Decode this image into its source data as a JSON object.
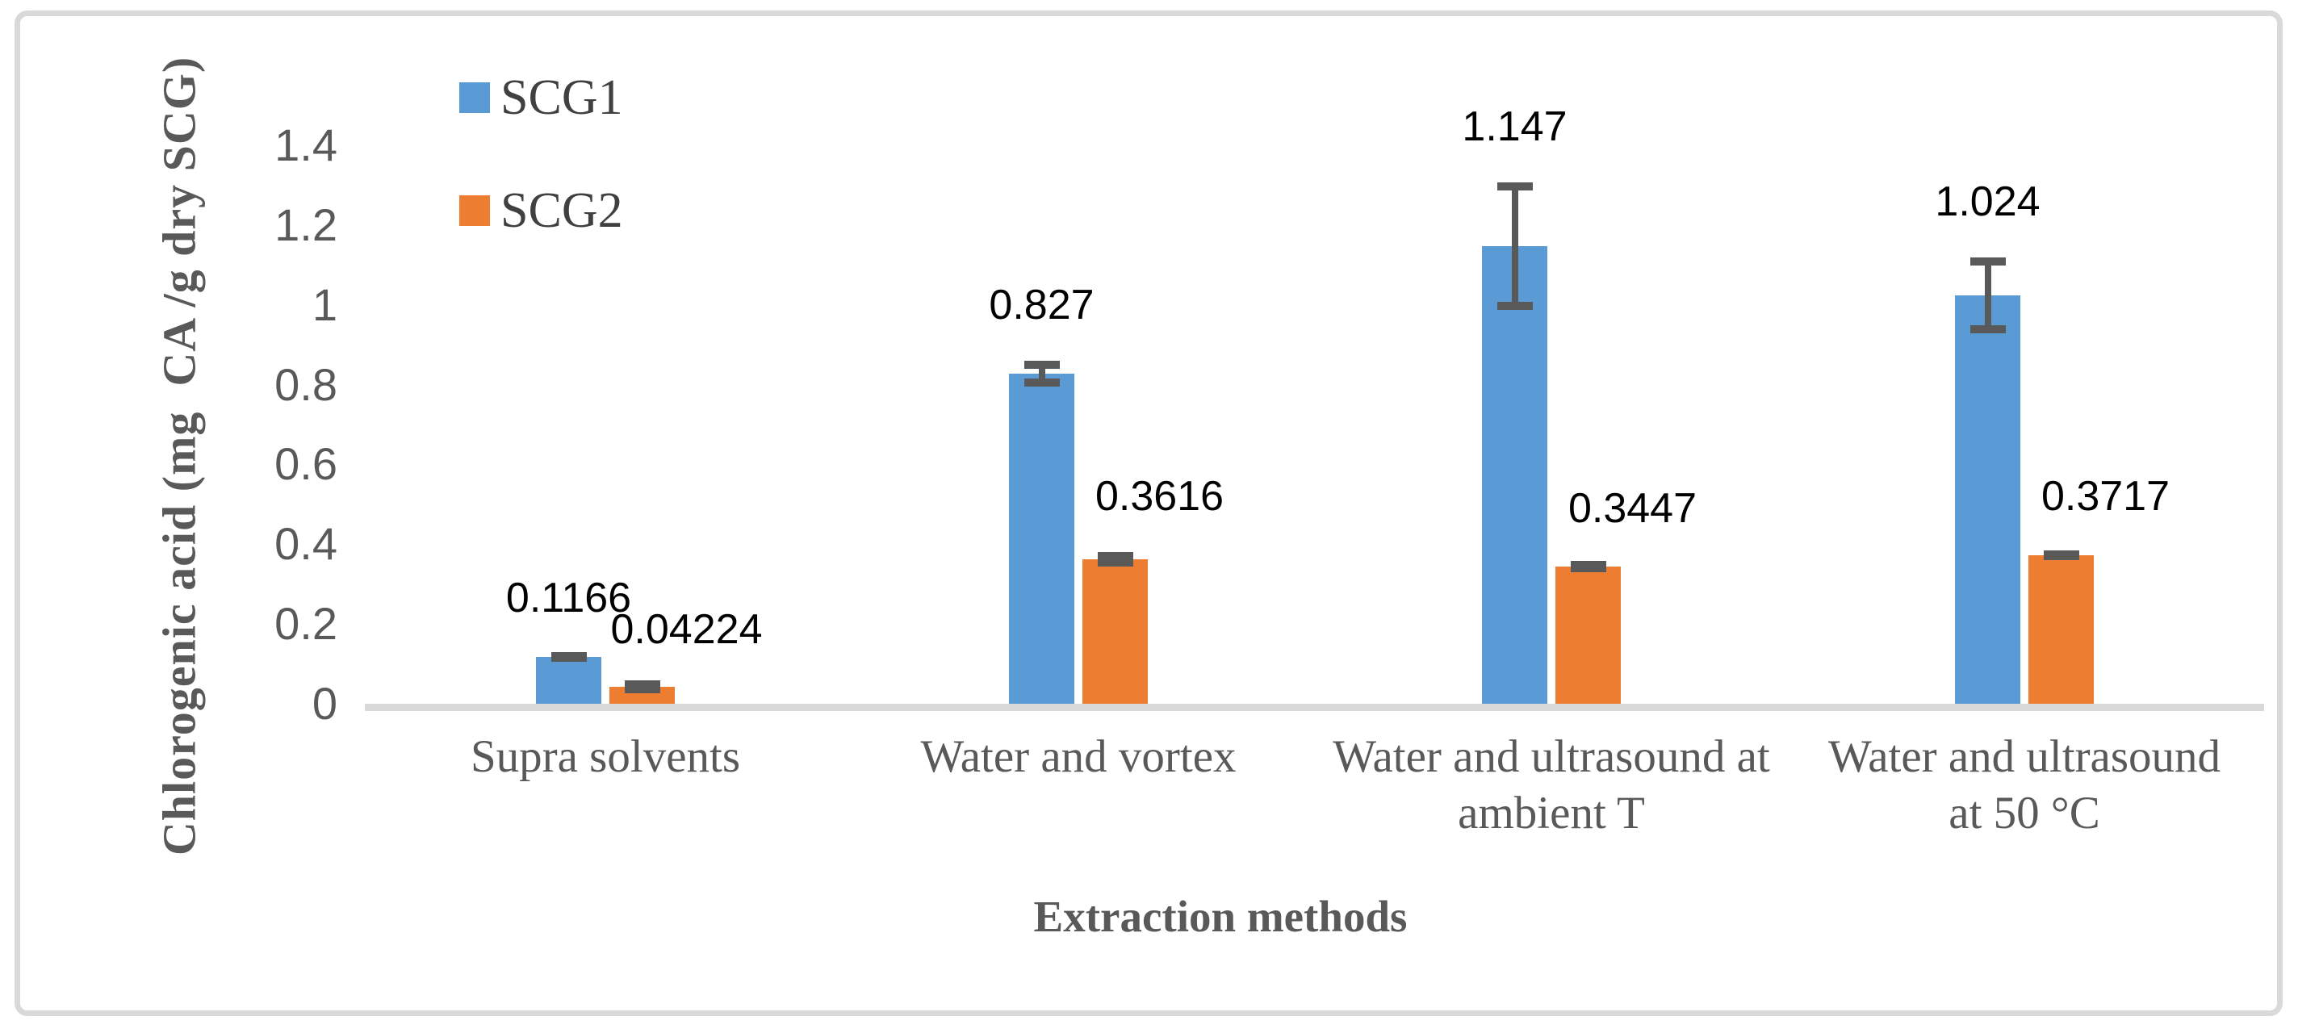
{
  "figure": {
    "background_color": "#ffffff",
    "border_color": "#d9d9d9",
    "axis_line_color": "#d9d9d9",
    "text_color": "#595959",
    "data_label_color": "#000000"
  },
  "legend": {
    "items": [
      {
        "label": "SCG1",
        "color": "#5B9BD5"
      },
      {
        "label": "SCG2",
        "color": "#ED7D31"
      }
    ]
  },
  "chart_data": {
    "type": "bar",
    "title": "",
    "xlabel": "Extraction methods",
    "ylabel": "Chlorogenic acid (mg  CA /g dry SCG)",
    "ylim": [
      0,
      1.4
    ],
    "grid": false,
    "legend_position": "top-left-inside",
    "error_bar_color": "#595959",
    "yticks": [
      {
        "value": 1.4,
        "label": "1.4"
      },
      {
        "value": 1.2,
        "label": "1.2"
      },
      {
        "value": 1.0,
        "label": "1"
      },
      {
        "value": 0.8,
        "label": "0.8"
      },
      {
        "value": 0.6,
        "label": "0.6"
      },
      {
        "value": 0.4,
        "label": "0.4"
      },
      {
        "value": 0.2,
        "label": "0.2"
      },
      {
        "value": 0.0,
        "label": "0"
      }
    ],
    "categories": [
      "Supra solvents",
      "Water and vortex",
      "Water and ultrasound at\nambient T",
      "Water and  ultrasound\nat 50 °C"
    ],
    "series": [
      {
        "name": "SCG1",
        "color": "#5B9BD5",
        "values": [
          0.1166,
          0.827,
          1.147,
          1.024
        ],
        "labels": [
          "0.1166",
          "0.827",
          "1.147",
          "1.024"
        ],
        "errors": [
          0.008,
          0.032,
          0.16,
          0.095
        ]
      },
      {
        "name": "SCG2",
        "color": "#ED7D31",
        "values": [
          0.04224,
          0.3616,
          0.3447,
          0.3717
        ],
        "labels": [
          "0.04224",
          "0.3616",
          "0.3447",
          "0.3717"
        ],
        "errors": [
          0.004,
          0.018,
          0.006,
          0.008
        ]
      }
    ]
  }
}
